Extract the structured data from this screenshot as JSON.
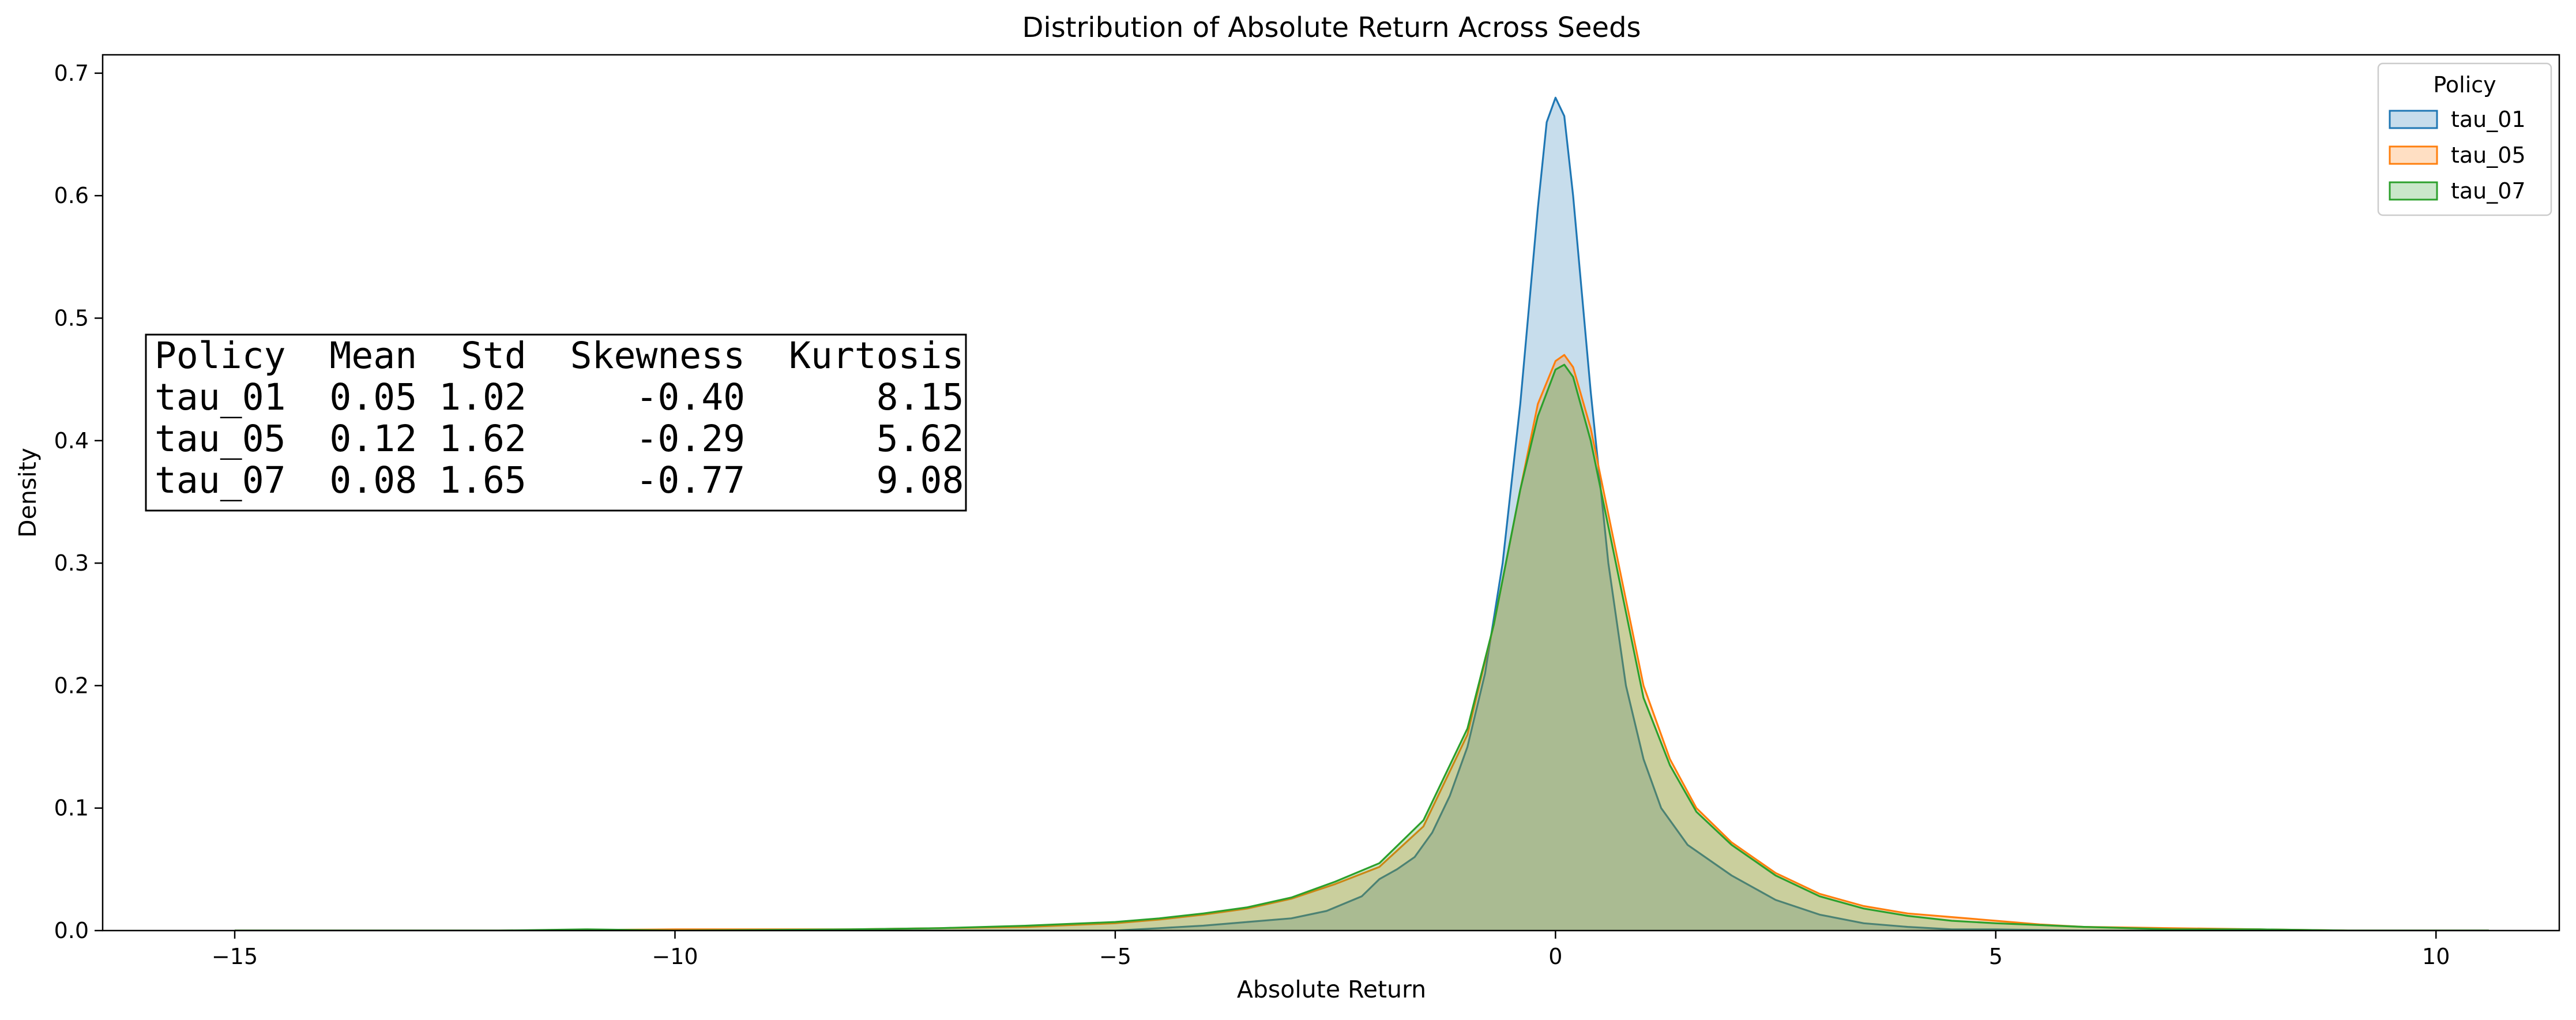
{
  "chart_data": {
    "type": "area",
    "title": "Distribution of Absolute Return Across Seeds",
    "xlabel": "Absolute Return",
    "ylabel": "Density",
    "xlim": [
      -16.5,
      11.4
    ],
    "ylim": [
      0,
      0.715
    ],
    "xticks": [
      -15,
      -10,
      -5,
      0,
      5,
      10
    ],
    "xtick_labels": [
      "−15",
      "−10",
      "−5",
      "0",
      "5",
      "10"
    ],
    "yticks": [
      0.0,
      0.1,
      0.2,
      0.3,
      0.4,
      0.5,
      0.6,
      0.7
    ],
    "ytick_labels": [
      "0.0",
      "0.1",
      "0.2",
      "0.3",
      "0.4",
      "0.5",
      "0.6",
      "0.7"
    ],
    "grid": false,
    "legend": {
      "title": "Policy",
      "placement": "top-right"
    },
    "series": [
      {
        "name": "tau_01",
        "color": "#1f77b4",
        "points": [
          [
            -15.0,
            0.0
          ],
          [
            -10.0,
            0.0
          ],
          [
            -7.0,
            0.0
          ],
          [
            -5.0,
            0.0
          ],
          [
            -4.5,
            0.002
          ],
          [
            -4.0,
            0.004
          ],
          [
            -3.5,
            0.007
          ],
          [
            -3.0,
            0.01
          ],
          [
            -2.6,
            0.016
          ],
          [
            -2.2,
            0.028
          ],
          [
            -2.0,
            0.042
          ],
          [
            -1.8,
            0.05
          ],
          [
            -1.6,
            0.06
          ],
          [
            -1.4,
            0.08
          ],
          [
            -1.2,
            0.11
          ],
          [
            -1.0,
            0.15
          ],
          [
            -0.8,
            0.21
          ],
          [
            -0.6,
            0.3
          ],
          [
            -0.4,
            0.43
          ],
          [
            -0.2,
            0.59
          ],
          [
            -0.1,
            0.66
          ],
          [
            0.0,
            0.68
          ],
          [
            0.1,
            0.665
          ],
          [
            0.2,
            0.6
          ],
          [
            0.4,
            0.44
          ],
          [
            0.6,
            0.3
          ],
          [
            0.8,
            0.2
          ],
          [
            1.0,
            0.14
          ],
          [
            1.2,
            0.1
          ],
          [
            1.5,
            0.07
          ],
          [
            2.0,
            0.045
          ],
          [
            2.5,
            0.025
          ],
          [
            3.0,
            0.013
          ],
          [
            3.5,
            0.006
          ],
          [
            4.0,
            0.003
          ],
          [
            4.5,
            0.001
          ],
          [
            5.0,
            0.001
          ],
          [
            6.0,
            0.0
          ],
          [
            8.0,
            0.0
          ],
          [
            10.0,
            0.0
          ],
          [
            10.6,
            0.0
          ]
        ]
      },
      {
        "name": "tau_05",
        "color": "#ff7f0e",
        "points": [
          [
            -15.0,
            0.0
          ],
          [
            -12.0,
            0.0
          ],
          [
            -10.0,
            0.001
          ],
          [
            -8.0,
            0.001
          ],
          [
            -7.0,
            0.002
          ],
          [
            -6.0,
            0.003
          ],
          [
            -5.0,
            0.006
          ],
          [
            -4.5,
            0.009
          ],
          [
            -4.0,
            0.013
          ],
          [
            -3.5,
            0.018
          ],
          [
            -3.0,
            0.026
          ],
          [
            -2.5,
            0.038
          ],
          [
            -2.0,
            0.052
          ],
          [
            -1.5,
            0.085
          ],
          [
            -1.0,
            0.16
          ],
          [
            -0.7,
            0.25
          ],
          [
            -0.4,
            0.36
          ],
          [
            -0.2,
            0.43
          ],
          [
            0.0,
            0.465
          ],
          [
            0.1,
            0.47
          ],
          [
            0.2,
            0.46
          ],
          [
            0.4,
            0.41
          ],
          [
            0.6,
            0.34
          ],
          [
            0.8,
            0.27
          ],
          [
            1.0,
            0.2
          ],
          [
            1.3,
            0.14
          ],
          [
            1.6,
            0.1
          ],
          [
            2.0,
            0.072
          ],
          [
            2.5,
            0.047
          ],
          [
            3.0,
            0.03
          ],
          [
            3.5,
            0.02
          ],
          [
            4.0,
            0.014
          ],
          [
            4.5,
            0.011
          ],
          [
            5.0,
            0.008
          ],
          [
            5.5,
            0.005
          ],
          [
            6.0,
            0.003
          ],
          [
            7.0,
            0.002
          ],
          [
            8.0,
            0.001
          ],
          [
            9.0,
            0.0
          ],
          [
            10.6,
            0.0
          ]
        ]
      },
      {
        "name": "tau_07",
        "color": "#2ca02c",
        "points": [
          [
            -15.0,
            0.0
          ],
          [
            -12.0,
            0.0
          ],
          [
            -11.0,
            0.001
          ],
          [
            -10.0,
            0.0
          ],
          [
            -8.0,
            0.001
          ],
          [
            -7.0,
            0.002
          ],
          [
            -6.0,
            0.004
          ],
          [
            -5.0,
            0.007
          ],
          [
            -4.5,
            0.01
          ],
          [
            -4.0,
            0.014
          ],
          [
            -3.5,
            0.019
          ],
          [
            -3.0,
            0.027
          ],
          [
            -2.5,
            0.04
          ],
          [
            -2.0,
            0.055
          ],
          [
            -1.5,
            0.09
          ],
          [
            -1.0,
            0.165
          ],
          [
            -0.7,
            0.25
          ],
          [
            -0.4,
            0.36
          ],
          [
            -0.2,
            0.42
          ],
          [
            0.0,
            0.458
          ],
          [
            0.1,
            0.462
          ],
          [
            0.2,
            0.452
          ],
          [
            0.4,
            0.4
          ],
          [
            0.6,
            0.33
          ],
          [
            0.8,
            0.26
          ],
          [
            1.0,
            0.19
          ],
          [
            1.3,
            0.135
          ],
          [
            1.6,
            0.097
          ],
          [
            2.0,
            0.07
          ],
          [
            2.5,
            0.045
          ],
          [
            3.0,
            0.028
          ],
          [
            3.5,
            0.018
          ],
          [
            4.0,
            0.012
          ],
          [
            4.5,
            0.008
          ],
          [
            5.0,
            0.006
          ],
          [
            6.0,
            0.003
          ],
          [
            7.0,
            0.001
          ],
          [
            8.0,
            0.001
          ],
          [
            9.0,
            0.0
          ],
          [
            10.6,
            0.0
          ]
        ]
      }
    ],
    "stats_table": {
      "header": "Policy  Mean  Std  Skewness  Kurtosis",
      "rows": [
        "tau_01  0.05 1.02     -0.40      8.15",
        "tau_05  0.12 1.62     -0.29      5.62",
        "tau_07  0.08 1.65     -0.77      9.08"
      ]
    }
  }
}
